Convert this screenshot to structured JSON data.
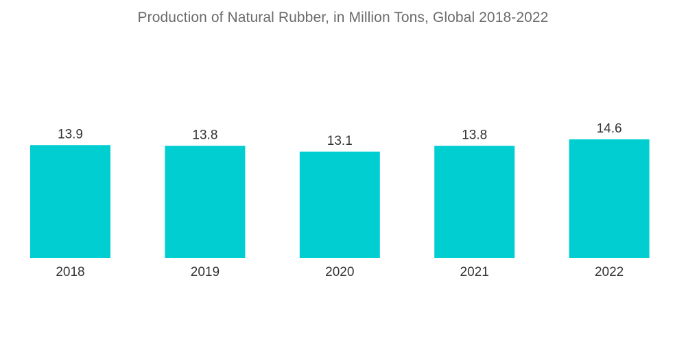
{
  "chart_data": {
    "type": "bar",
    "title": "Production of Natural Rubber, in Million Tons, Global 2018-2022",
    "categories": [
      "2018",
      "2019",
      "2020",
      "2021",
      "2022"
    ],
    "values": [
      13.9,
      13.8,
      13.1,
      13.8,
      14.6
    ],
    "value_labels": [
      "13.9",
      "13.8",
      "13.1",
      "13.8",
      "14.6"
    ],
    "xlabel": "",
    "ylabel": "",
    "ylim": [
      0,
      14.6
    ],
    "grid": false,
    "legend": "none",
    "bar_color": "#00CED1"
  }
}
